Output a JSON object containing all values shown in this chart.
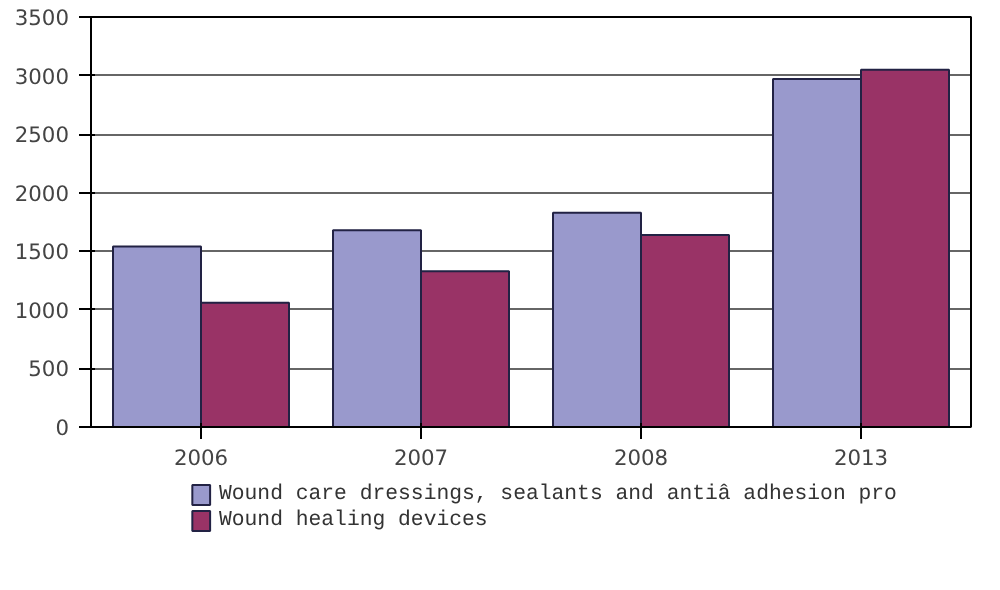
{
  "chart_data": {
    "type": "bar",
    "categories": [
      "2006",
      "2007",
      "2008",
      "2013"
    ],
    "series": [
      {
        "name": "Wound care dressings, sealants and antiâ  adhesion pro",
        "color": "#9999cc",
        "values": [
          1540,
          1680,
          1830,
          2970
        ]
      },
      {
        "name": "Wound healing devices",
        "color": "#993366",
        "values": [
          1060,
          1330,
          1640,
          3050
        ]
      }
    ],
    "ylim": [
      0,
      3500
    ],
    "yticks": [
      0,
      500,
      1000,
      1500,
      2000,
      2500,
      3000,
      3500
    ],
    "grid": "y",
    "legend": "bottom"
  }
}
